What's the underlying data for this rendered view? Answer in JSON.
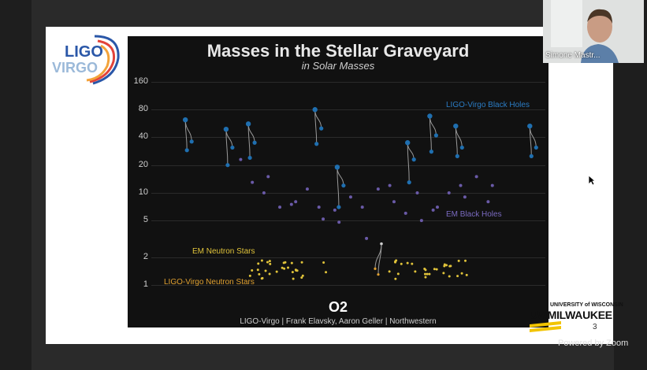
{
  "webcam": {
    "participant_name": "Simone Mastr..."
  },
  "slide": {
    "logo_text_top": "LIGO",
    "logo_text_bottom": "VIRGO",
    "page_number": "3",
    "university_top": "UNIVERSITY of WISCONSIN",
    "university_main": "UWMILWAUKEE"
  },
  "zoom": {
    "powered_by": "Powered by Zoom"
  },
  "chart_data": {
    "type": "scatter",
    "title": "Masses in the Stellar Graveyard",
    "subtitle": "in Solar Masses",
    "y_scale": "log",
    "ylim": [
      0.8,
      180
    ],
    "yticks": [
      "160",
      "80",
      "40",
      "20",
      "10",
      "5",
      "2",
      "1"
    ],
    "ytick_values": [
      160,
      80,
      40,
      20,
      10,
      5,
      2,
      1
    ],
    "grid": true,
    "observing_run": "O2",
    "credit": "LIGO-Virgo | Frank Elavsky, Aaron Geller | Northwestern",
    "colors": {
      "ligo_bh": "#1f6fb0",
      "em_bh": "#6a5aa8",
      "em_ns": "#e0c33a",
      "ligo_ns": "#e0a030",
      "merger_line": "#9a9a9a"
    },
    "series": [
      {
        "name": "LIGO-Virgo Black Holes",
        "color": "#1f6fb0"
      },
      {
        "name": "EM Black Holes",
        "color": "#6a5aa8"
      },
      {
        "name": "EM Neutron Stars",
        "color": "#e0c33a"
      },
      {
        "name": "LIGO-Virgo Neutron Stars",
        "color": "#e0a030"
      }
    ],
    "ligo_bh_mergers": [
      {
        "x": 0.06,
        "m1": 36,
        "m2": 29,
        "final": 62
      },
      {
        "x": 0.17,
        "m1": 31,
        "m2": 20,
        "final": 49
      },
      {
        "x": 0.23,
        "m1": 35,
        "m2": 24,
        "final": 56
      },
      {
        "x": 0.41,
        "m1": 50,
        "m2": 34,
        "final": 80
      },
      {
        "x": 0.47,
        "m1": 12,
        "m2": 7,
        "final": 19
      },
      {
        "x": 0.66,
        "m1": 23,
        "m2": 13,
        "final": 35
      },
      {
        "x": 0.72,
        "m1": 42,
        "m2": 28,
        "final": 68
      },
      {
        "x": 0.79,
        "m1": 31,
        "m2": 25,
        "final": 53
      },
      {
        "x": 0.99,
        "m1": 31,
        "m2": 25,
        "final": 53
      }
    ],
    "em_bh_masses": [
      23,
      13,
      10,
      15,
      7,
      7.5,
      8,
      11,
      7,
      5.2,
      6.5,
      4.8,
      9,
      7,
      3.2,
      11,
      12,
      8,
      6,
      10,
      5,
      6.5,
      7,
      10,
      12,
      9,
      15,
      8,
      12
    ],
    "em_ns_count": 60,
    "ligo_ns_merger": {
      "m1": 1.5,
      "m2": 1.3,
      "final": 2.8
    }
  }
}
